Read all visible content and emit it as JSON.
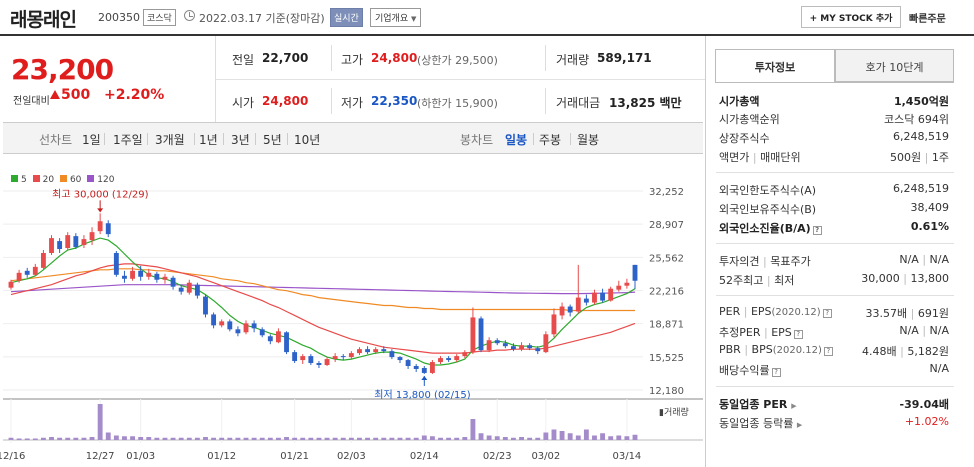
{
  "header": {
    "name": "래몽래인",
    "code": "200350",
    "market": "코스닥",
    "date": "2022.03.17 기준(장마감)",
    "realtime": "실시간",
    "corp_info": "기업개요",
    "my_stock": "MY STOCK 추가",
    "quick_order": "빠른주문"
  },
  "price": {
    "current": "23,200",
    "change_label": "전일대비",
    "change_amount": "500",
    "change_pct": "+2.20%"
  },
  "stats": {
    "prev_label": "전일",
    "prev": "22,700",
    "high_label": "고가",
    "high": "24,800",
    "upper_limit": "(상한가 29,500)",
    "volume_label": "거래량",
    "volume": "589,171",
    "open_label": "시가",
    "open": "24,800",
    "low_label": "저가",
    "low": "22,350",
    "lower_limit": "(하한가 15,900)",
    "amount_label": "거래대금",
    "amount": "13,825",
    "amount_unit": "백만"
  },
  "period": {
    "line_chart": "선차트",
    "tabs": [
      "1일",
      "1주일",
      "3개월",
      "1년",
      "3년",
      "5년",
      "10년"
    ],
    "candle_chart": "봉차트",
    "candle_tabs": [
      "일봉",
      "주봉",
      "월봉"
    ]
  },
  "chart_data": {
    "type": "candlestick",
    "legend": [
      "5",
      "20",
      "60",
      "120"
    ],
    "legend_colors": [
      "#2eaa2e",
      "#e84b4b",
      "#f08a24",
      "#9a55c8"
    ],
    "yticks": [
      "32,252",
      "28,907",
      "25,562",
      "22,216",
      "18,871",
      "15,525",
      "12,180"
    ],
    "ylim": [
      12180,
      32252
    ],
    "xticks": [
      "12/16",
      "12/27",
      "01/03",
      "01/12",
      "01/21",
      "02/03",
      "02/14",
      "02/23",
      "03/02",
      "03/14"
    ],
    "xtick_index": [
      0,
      11,
      16,
      26,
      35,
      42,
      51,
      60,
      66,
      76
    ],
    "high_label": "최고 30,000 (12/29)",
    "low_label": "최저 13,800 (02/15)",
    "volume_label": "거래량",
    "candles": [
      [
        22500,
        23100,
        22300,
        23300
      ],
      [
        23200,
        24000,
        23000,
        24300
      ],
      [
        24200,
        23800,
        23500,
        24500
      ],
      [
        23800,
        24600,
        23700,
        24900
      ],
      [
        24500,
        26000,
        24300,
        26300
      ],
      [
        26000,
        27500,
        25800,
        27800
      ],
      [
        27200,
        26400,
        26000,
        27500
      ],
      [
        26500,
        27800,
        26300,
        28100
      ],
      [
        27700,
        26600,
        26400,
        28000
      ],
      [
        26800,
        27400,
        26500,
        27800
      ],
      [
        27300,
        28100,
        26800,
        28600
      ],
      [
        28200,
        29200,
        27900,
        30000
      ],
      [
        29000,
        27900,
        27600,
        29300
      ],
      [
        26000,
        23800,
        23600,
        26200
      ],
      [
        23700,
        23400,
        23000,
        24200
      ],
      [
        23400,
        24200,
        23200,
        24600
      ],
      [
        24200,
        23600,
        23200,
        24700
      ],
      [
        23600,
        24000,
        23300,
        24400
      ],
      [
        23900,
        23300,
        23000,
        24100
      ],
      [
        23300,
        23600,
        22900,
        23900
      ],
      [
        23500,
        22600,
        22300,
        23700
      ],
      [
        22500,
        22100,
        21800,
        22800
      ],
      [
        22000,
        23000,
        21800,
        23300
      ],
      [
        22800,
        21700,
        21400,
        23000
      ],
      [
        21600,
        19800,
        19500,
        21800
      ],
      [
        19800,
        18700,
        18400,
        20000
      ],
      [
        18700,
        19100,
        18500,
        19300
      ],
      [
        19100,
        18300,
        18100,
        19300
      ],
      [
        18300,
        17900,
        17600,
        18600
      ],
      [
        18000,
        18900,
        17800,
        19200
      ],
      [
        18900,
        18400,
        18000,
        19200
      ],
      [
        18300,
        17700,
        17500,
        18500
      ],
      [
        17600,
        17100,
        16800,
        17800
      ],
      [
        17000,
        18100,
        16900,
        18400
      ],
      [
        18000,
        16000,
        15800,
        18100
      ],
      [
        16000,
        15100,
        14900,
        16200
      ],
      [
        15200,
        15600,
        14800,
        15800
      ],
      [
        15600,
        14900,
        14700,
        15800
      ],
      [
        14900,
        14700,
        14400,
        15100
      ],
      [
        14700,
        15300,
        14600,
        15500
      ],
      [
        15300,
        15600,
        15000,
        15900
      ],
      [
        15600,
        15500,
        15200,
        15800
      ],
      [
        15500,
        15900,
        15300,
        16100
      ],
      [
        15900,
        16300,
        15700,
        16500
      ],
      [
        16300,
        16000,
        15800,
        16600
      ],
      [
        16000,
        16300,
        15800,
        16500
      ],
      [
        16300,
        16100,
        15900,
        16600
      ],
      [
        16100,
        15500,
        15300,
        16300
      ],
      [
        15500,
        15200,
        14900,
        15600
      ],
      [
        15200,
        14600,
        14300,
        15300
      ],
      [
        14600,
        14300,
        14000,
        14800
      ],
      [
        14400,
        13900,
        13800,
        14600
      ],
      [
        13900,
        15000,
        13800,
        15200
      ],
      [
        15000,
        15400,
        14800,
        15600
      ],
      [
        15400,
        15200,
        15000,
        15600
      ],
      [
        15200,
        15600,
        15000,
        15800
      ],
      [
        15600,
        16000,
        15400,
        16200
      ],
      [
        16000,
        19500,
        15800,
        20500
      ],
      [
        19400,
        16200,
        16000,
        19600
      ],
      [
        16200,
        17200,
        16000,
        17500
      ],
      [
        17200,
        16900,
        16700,
        17400
      ],
      [
        16900,
        16600,
        16400,
        17200
      ],
      [
        16600,
        16300,
        16100,
        16900
      ],
      [
        16300,
        16700,
        16100,
        17000
      ],
      [
        16700,
        16400,
        16200,
        16900
      ],
      [
        16400,
        16100,
        15800,
        16600
      ],
      [
        16000,
        17800,
        15900,
        18100
      ],
      [
        17800,
        19800,
        17500,
        20400
      ],
      [
        19700,
        20600,
        19300,
        21000
      ],
      [
        20600,
        20000,
        19600,
        20800
      ],
      [
        20100,
        21500,
        19900,
        24800
      ],
      [
        21400,
        21000,
        20700,
        21800
      ],
      [
        21000,
        22000,
        20800,
        22300
      ],
      [
        22000,
        21200,
        21000,
        22400
      ],
      [
        21200,
        22400,
        21100,
        22600
      ],
      [
        22300,
        22700,
        22100,
        23200
      ],
      [
        22700,
        23000,
        22400,
        23400
      ],
      [
        24800,
        23200,
        22350,
        24800
      ]
    ],
    "volumes": [
      3,
      2,
      2,
      2,
      3,
      4,
      3,
      3,
      3,
      3,
      4,
      48,
      10,
      6,
      5,
      5,
      4,
      4,
      3,
      3,
      3,
      3,
      3,
      3,
      4,
      3,
      3,
      3,
      3,
      3,
      3,
      3,
      3,
      3,
      4,
      3,
      3,
      3,
      3,
      3,
      3,
      3,
      3,
      3,
      3,
      3,
      3,
      3,
      3,
      3,
      3,
      6,
      5,
      3,
      3,
      3,
      4,
      28,
      9,
      6,
      5,
      4,
      3,
      4,
      3,
      3,
      10,
      14,
      12,
      9,
      6,
      14,
      6,
      9,
      5,
      6,
      5,
      7
    ],
    "ma5": [
      23000,
      23200,
      23400,
      23700,
      24300,
      25000,
      25700,
      26300,
      26500,
      26900,
      27200,
      27500,
      27300,
      26700,
      25900,
      25100,
      24400,
      23800,
      23500,
      23400,
      23100,
      22700,
      22500,
      22300,
      21800,
      21200,
      20500,
      19700,
      19100,
      18700,
      18500,
      18200,
      17900,
      17700,
      17500,
      17100,
      16700,
      16400,
      15900,
      15500,
      15300,
      15200,
      15300,
      15500,
      15700,
      15900,
      16000,
      16000,
      15900,
      15600,
      15300,
      14900,
      14700,
      14700,
      14800,
      15000,
      15300,
      16200,
      16600,
      16900,
      17100,
      17000,
      16700,
      16600,
      16600,
      16500,
      16700,
      17400,
      18300,
      19100,
      19900,
      20500,
      20800,
      21000,
      21300,
      21600,
      21900,
      22400
    ],
    "ma20": [
      21800,
      22000,
      22200,
      22400,
      22600,
      22800,
      23100,
      23400,
      23700,
      23900,
      24200,
      24500,
      24700,
      24800,
      24900,
      24900,
      24800,
      24700,
      24600,
      24400,
      24200,
      24000,
      23800,
      23600,
      23300,
      23000,
      22700,
      22400,
      22100,
      21800,
      21500,
      21200,
      20800,
      20500,
      20100,
      19700,
      19300,
      18900,
      18500,
      18200,
      17900,
      17600,
      17300,
      17100,
      16900,
      16700,
      16500,
      16400,
      16300,
      16200,
      16100,
      16000,
      15900,
      15900,
      15900,
      15900,
      15900,
      16000,
      16100,
      16100,
      16200,
      16200,
      16300,
      16300,
      16300,
      16300,
      16400,
      16600,
      16800,
      17000,
      17200,
      17400,
      17600,
      17800,
      18000,
      18300,
      18600,
      18900
    ],
    "ma60": [
      23200,
      23300,
      23400,
      23500,
      23600,
      23700,
      23800,
      23900,
      24000,
      24100,
      24200,
      24300,
      24300,
      24400,
      24400,
      24400,
      24300,
      24300,
      24200,
      24200,
      24100,
      24000,
      23900,
      23800,
      23700,
      23600,
      23400,
      23300,
      23200,
      23000,
      22900,
      22700,
      22500,
      22300,
      22200,
      22000,
      21800,
      21700,
      21500,
      21400,
      21300,
      21200,
      21100,
      21000,
      20900,
      20800,
      20700,
      20700,
      20600,
      20500,
      20500,
      20400,
      20400,
      20300,
      20300,
      20300,
      20300,
      20300,
      20300,
      20300,
      20300,
      20300,
      20300,
      20300,
      20300,
      20300,
      20300,
      20300,
      20300,
      20200,
      20200,
      20200,
      20200,
      20200,
      20200,
      20200,
      20200,
      20200
    ],
    "ma120": [
      22100,
      22150,
      22200,
      22250,
      22300,
      22350,
      22400,
      22450,
      22500,
      22550,
      22600,
      22650,
      22700,
      22750,
      22800,
      22800,
      22800,
      22800,
      22800,
      22800,
      22800,
      22780,
      22760,
      22740,
      22720,
      22700,
      22680,
      22660,
      22640,
      22620,
      22600,
      22580,
      22560,
      22540,
      22520,
      22500,
      22480,
      22460,
      22440,
      22420,
      22400,
      22380,
      22360,
      22340,
      22320,
      22300,
      22280,
      22260,
      22240,
      22220,
      22200,
      22180,
      22160,
      22140,
      22120,
      22100,
      22080,
      22060,
      22040,
      22020,
      22000,
      21980,
      21960,
      21950,
      21940,
      21930,
      21920,
      21910,
      21900,
      21900,
      21900,
      21910,
      21920,
      21940,
      21960,
      21980,
      22000,
      22050
    ]
  },
  "right_panel": {
    "tab_invest": "투자정보",
    "tab_quote": "호가 10단계",
    "rows": [
      {
        "label": "시가총액",
        "value": "1,450억원"
      },
      {
        "label": "시가총액순위",
        "value": "코스닥 694위"
      },
      {
        "label": "상장주식수",
        "value": "6,248,519"
      },
      {
        "label": "액면가",
        "label2": "매매단위",
        "value": "500원",
        "value2": "1주"
      },
      {
        "label": "외국인한도주식수(A)",
        "value": "6,248,519"
      },
      {
        "label": "외국인보유주식수(B)",
        "value": "38,409"
      },
      {
        "label": "외국인소진율(B/A)",
        "value": "0.61%"
      },
      {
        "label": "투자의견",
        "label2": "목표주가",
        "value": "N/A",
        "value2": "N/A"
      },
      {
        "label": "52주최고",
        "label2": "최저",
        "value": "30,000",
        "value2": "13,800"
      },
      {
        "label": "PER",
        "label2": "EPS",
        "note": "(2020.12)",
        "value": "33.57배",
        "value2": "691원"
      },
      {
        "label": "추정PER",
        "label2": "EPS",
        "value": "N/A",
        "value2": "N/A"
      },
      {
        "label": "PBR",
        "label2": "BPS",
        "note": "(2020.12)",
        "value": "4.48배",
        "value2": "5,182원"
      },
      {
        "label": "배당수익률",
        "value": "N/A"
      },
      {
        "label": "동일업종 PER",
        "value": "-39.04배"
      },
      {
        "label": "동일업종 등락률",
        "value": "+1.02%"
      }
    ]
  }
}
